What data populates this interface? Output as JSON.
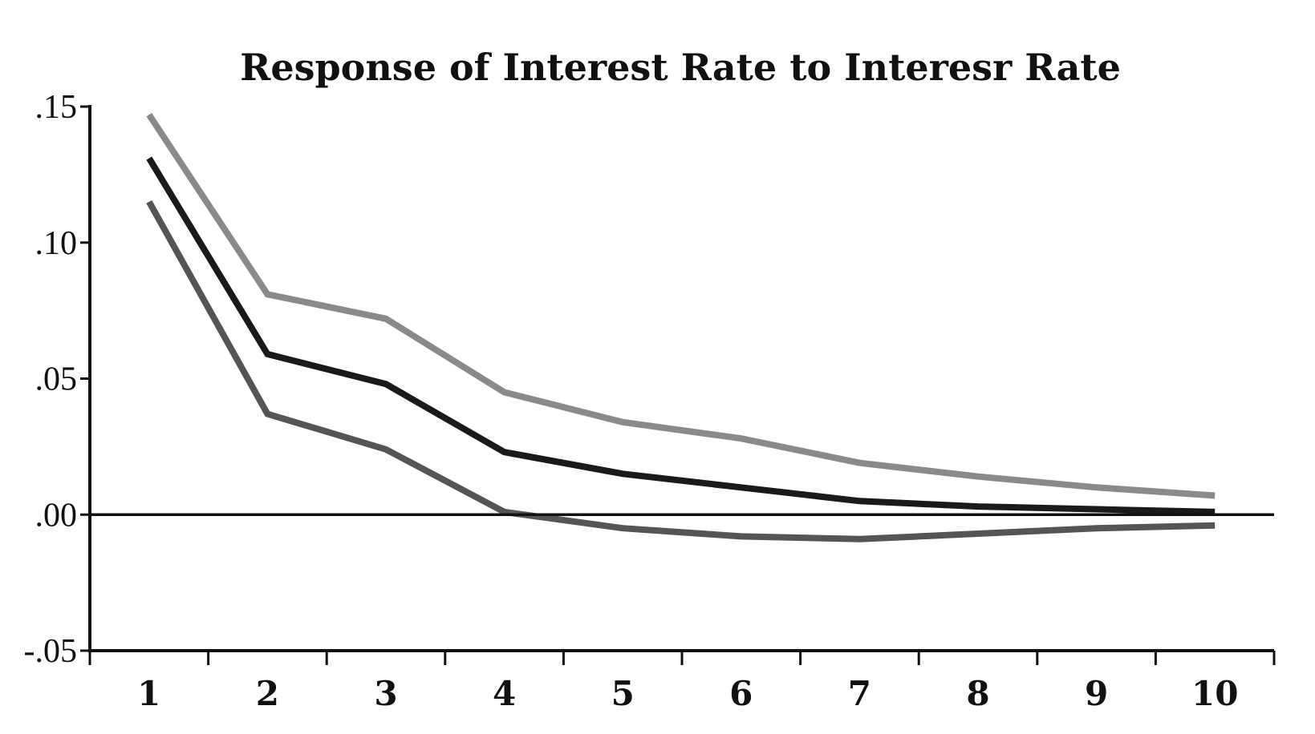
{
  "chart_data": {
    "type": "line",
    "title": "Response of Interest Rate to Interesr Rate",
    "xlabel": "",
    "ylabel": "",
    "x": [
      1,
      2,
      3,
      4,
      5,
      6,
      7,
      8,
      9,
      10
    ],
    "x_tick_labels": [
      "1",
      "2",
      "3",
      "4",
      "5",
      "6",
      "7",
      "8",
      "9",
      "10"
    ],
    "y_tick_values": [
      0.15,
      0.1,
      0.05,
      0.0,
      -0.05
    ],
    "y_tick_labels": [
      ".15",
      ".10",
      ".05",
      ".00",
      "-.05"
    ],
    "ylim": [
      -0.05,
      0.15
    ],
    "xlim": [
      0.5,
      10.5
    ],
    "zero_line": true,
    "grid": false,
    "series": [
      {
        "role": "upper-band",
        "color": "#8a8a8a",
        "values": [
          0.147,
          0.081,
          0.072,
          0.045,
          0.034,
          0.028,
          0.019,
          0.014,
          0.01,
          0.007
        ]
      },
      {
        "role": "response",
        "color": "#1a1a1a",
        "values": [
          0.131,
          0.059,
          0.048,
          0.023,
          0.015,
          0.01,
          0.005,
          0.003,
          0.002,
          0.001
        ]
      },
      {
        "role": "lower-band",
        "color": "#555555",
        "values": [
          0.115,
          0.037,
          0.024,
          0.001,
          -0.005,
          -0.008,
          -0.009,
          -0.007,
          -0.005,
          -0.004
        ]
      }
    ]
  }
}
